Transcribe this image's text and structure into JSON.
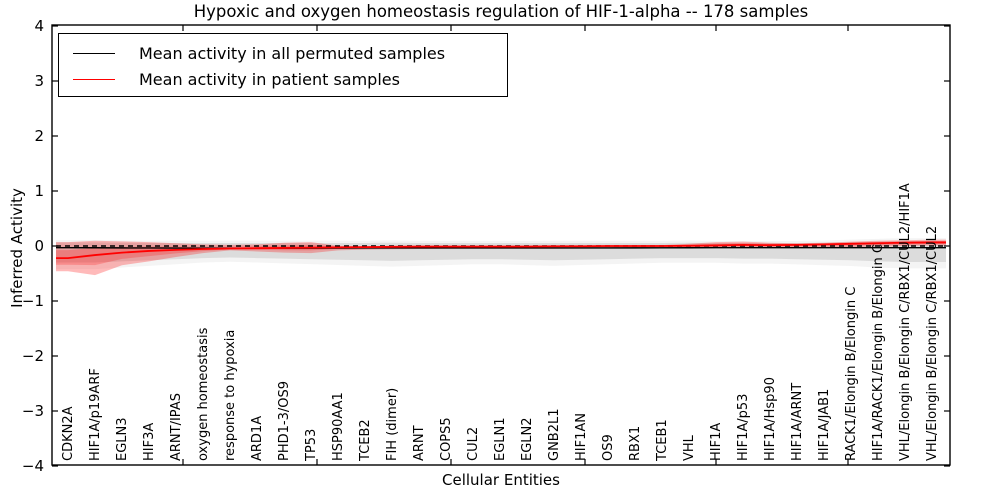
{
  "title": "Hypoxic and oxygen homeostasis regulation of HIF-1-alpha -- 178 samples",
  "legend": {
    "items": [
      {
        "label": "Mean activity in all permuted samples",
        "color": "#000000"
      },
      {
        "label": "Mean activity in patient samples",
        "color": "#ff0000"
      }
    ]
  },
  "chart_data": {
    "type": "line",
    "title": "Hypoxic and oxygen homeostasis regulation of HIF-1-alpha -- 178 samples",
    "xlabel": "Cellular Entities",
    "ylabel": "Inferred Activity",
    "ylim": [
      -4,
      4
    ],
    "yticks": [
      4,
      3,
      2,
      1,
      0,
      -1,
      -2,
      -3,
      -4
    ],
    "grid": false,
    "legend_position": "upper left",
    "categories": [
      "CDKN2A",
      "HIF1A/p19ARF",
      "EGLN3",
      "HIF3A",
      "ARNT/IPAS",
      "oxygen homeostasis",
      "response to hypoxia",
      "ARD1A",
      "PHD1-3/OS9",
      "TP53",
      "HSP90AA1",
      "TCEB2",
      "FIH (dimer)",
      "ARNT",
      "COPS5",
      "CUL2",
      "EGLN1",
      "EGLN2",
      "GNB2L1",
      "HIF1AN",
      "OS9",
      "RBX1",
      "TCEB1",
      "VHL",
      "HIF1A",
      "HIF1A/p53",
      "HIF1A/Hsp90",
      "HIF1A/ARNT",
      "HIF1A/JAB1",
      "RACK1/Elongin B/Elongin C",
      "HIF1A/RACK1/Elongin B/Elongin C",
      "VHL/Elongin B/Elongin C/RBX1/CUL2/HIF1A",
      "VHL/Elongin B/Elongin C/RBX1/CUL2"
    ],
    "series": [
      {
        "name": "Mean activity in all permuted samples",
        "color": "#000000",
        "values": [
          -0.03,
          -0.032,
          -0.034,
          -0.036,
          -0.038,
          -0.04,
          -0.04,
          -0.04,
          -0.04,
          -0.04,
          -0.038,
          -0.036,
          -0.035,
          -0.035,
          -0.035,
          -0.035,
          -0.035,
          -0.035,
          -0.036,
          -0.036,
          -0.035,
          -0.034,
          -0.033,
          -0.032,
          -0.031,
          -0.03,
          -0.03,
          -0.03,
          -0.03,
          -0.03,
          -0.03,
          -0.03,
          -0.03
        ]
      },
      {
        "name": "Mean activity in patient samples",
        "color": "#ff0000",
        "values": [
          -0.22,
          -0.165,
          -0.12,
          -0.09,
          -0.07,
          -0.055,
          -0.045,
          -0.04,
          -0.035,
          -0.03,
          -0.025,
          -0.02,
          -0.015,
          -0.01,
          -0.01,
          -0.01,
          -0.01,
          -0.01,
          -0.005,
          -0.005,
          0.0,
          0.0,
          0.0,
          0.005,
          0.01,
          0.02,
          0.015,
          0.02,
          0.03,
          0.04,
          0.05,
          0.06,
          0.065
        ]
      }
    ],
    "bands": [
      {
        "name": "permuted-samples-range",
        "color": "#aaaaaa",
        "opacity": 0.32,
        "upper": [
          0.065,
          0.065,
          0.06,
          0.055,
          0.055,
          0.055,
          0.055,
          0.055,
          0.055,
          0.055,
          0.055,
          0.055,
          0.06,
          0.055,
          0.055,
          0.055,
          0.055,
          0.055,
          0.055,
          0.055,
          0.055,
          0.055,
          0.055,
          0.06,
          0.055,
          0.055,
          0.055,
          0.055,
          0.06,
          0.07,
          0.08,
          0.09,
          0.09
        ],
        "lower": [
          -0.3,
          -0.3,
          -0.28,
          -0.26,
          -0.24,
          -0.22,
          -0.21,
          -0.22,
          -0.23,
          -0.24,
          -0.25,
          -0.26,
          -0.27,
          -0.26,
          -0.25,
          -0.24,
          -0.24,
          -0.25,
          -0.26,
          -0.25,
          -0.24,
          -0.23,
          -0.22,
          -0.22,
          -0.22,
          -0.23,
          -0.23,
          -0.24,
          -0.25,
          -0.26,
          -0.28,
          -0.29,
          -0.29
        ]
      },
      {
        "name": "patient-samples-range",
        "color": "#ff0000",
        "opacity": 0.27,
        "upper": [
          0.07,
          0.095,
          0.085,
          0.07,
          0.05,
          0.03,
          0.02,
          0.03,
          0.06,
          0.07,
          0.005,
          0.0,
          0.0,
          0.0,
          0.0,
          0.0,
          0.0,
          0.0,
          0.005,
          0.005,
          0.01,
          0.01,
          0.015,
          0.04,
          0.07,
          0.08,
          0.06,
          0.05,
          0.06,
          0.08,
          0.095,
          0.105,
          0.115
        ],
        "lower": [
          -0.46,
          -0.53,
          -0.35,
          -0.28,
          -0.2,
          -0.13,
          -0.08,
          -0.1,
          -0.12,
          -0.13,
          -0.08,
          -0.065,
          -0.06,
          -0.055,
          -0.05,
          -0.05,
          -0.05,
          -0.05,
          -0.05,
          -0.045,
          -0.045,
          -0.04,
          -0.04,
          -0.04,
          -0.035,
          -0.03,
          -0.035,
          -0.03,
          -0.025,
          -0.02,
          -0.01,
          0.0,
          0.01
        ]
      }
    ],
    "reference_line": {
      "value": 0,
      "style": "dashed",
      "color": "#000000"
    }
  }
}
